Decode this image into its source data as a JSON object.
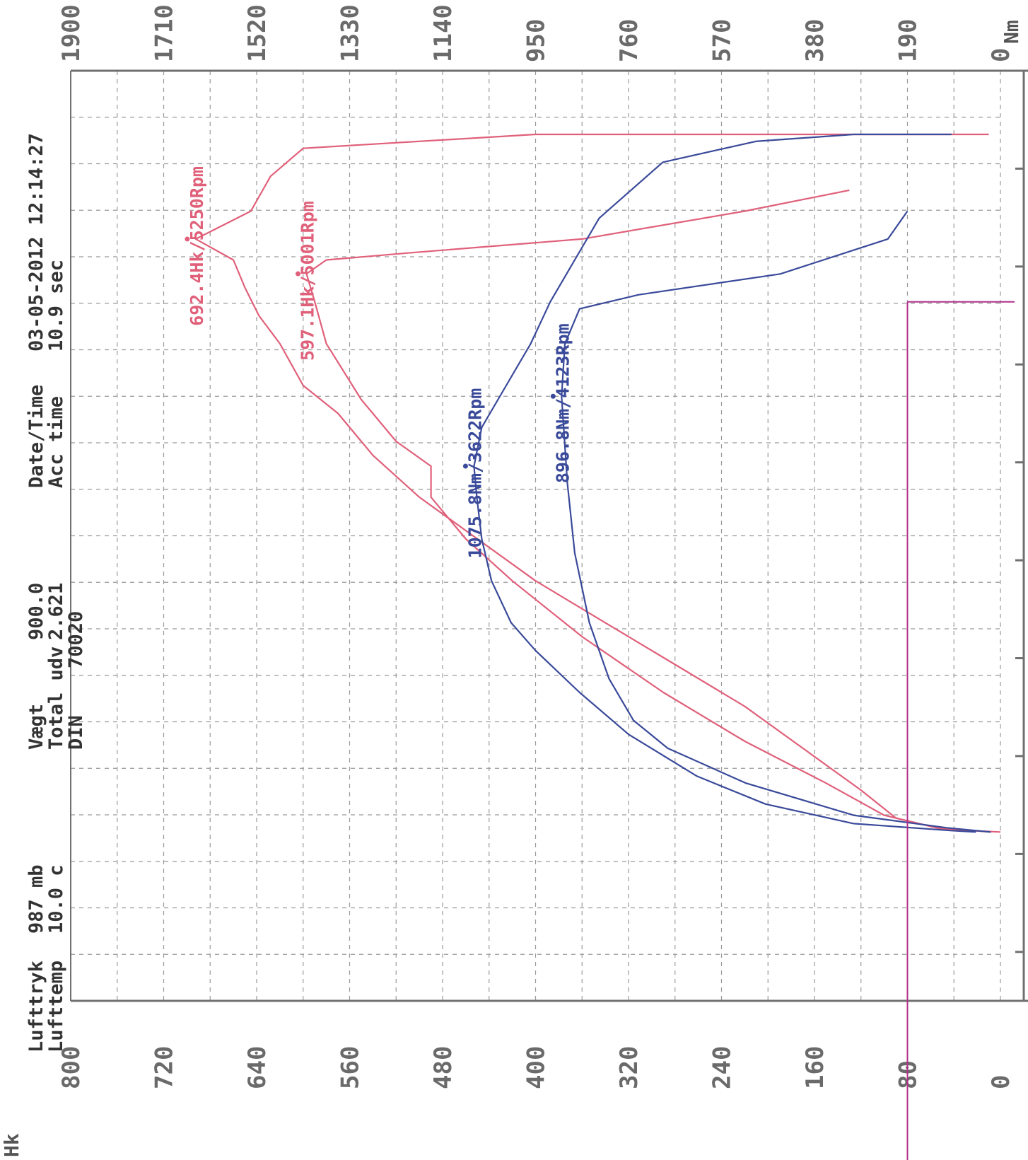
{
  "header": {
    "rows": [
      {
        "label": "Lufttryk",
        "value": "987 mb"
      },
      {
        "label": "Lufttemp",
        "value": "10.0 c"
      },
      {
        "label": "Vægt",
        "value": "900.0"
      },
      {
        "label": "Total udv",
        "value": "2.621"
      },
      {
        "label": "DIN",
        "value": "70020"
      },
      {
        "label": "Date/Time",
        "value": "03-05-2012 12:14:27"
      },
      {
        "label": "Acc time",
        "value": "10.9 sec"
      }
    ]
  },
  "colors": {
    "power": "#e0607a",
    "torque": "#3a4a9a",
    "marker": "#b0308a",
    "grid": "#9a9a9a",
    "frame": "#707070"
  },
  "chart_data": {
    "type": "line",
    "orientation": "rotated-90",
    "x_axis": {
      "unit": "",
      "range": [
        0,
        6000
      ]
    },
    "power_axis": {
      "unit": "Hk",
      "ticks": [
        "0",
        "80",
        "160",
        "240",
        "320",
        "400",
        "480",
        "560",
        "640",
        "720",
        "800"
      ],
      "range": [
        0,
        800
      ]
    },
    "torque_axis": {
      "unit": "Nm",
      "ticks": [
        "0",
        "190",
        "380",
        "570",
        "760",
        "950",
        "1140",
        "1330",
        "1520",
        "1710",
        "1900"
      ],
      "range": [
        0,
        1900
      ]
    },
    "marker_rpm": 4800,
    "series": [
      {
        "kind": "power",
        "unit": "Hk",
        "points": [
          [
            1000,
            0
          ],
          [
            1020,
            50
          ],
          [
            1100,
            90
          ],
          [
            1300,
            120
          ],
          [
            1600,
            170
          ],
          [
            1900,
            220
          ],
          [
            2200,
            280
          ],
          [
            2500,
            340
          ],
          [
            2800,
            400
          ],
          [
            3100,
            450
          ],
          [
            3400,
            500
          ],
          [
            3700,
            540
          ],
          [
            4000,
            570
          ],
          [
            4200,
            600
          ],
          [
            4500,
            620
          ],
          [
            4700,
            638
          ],
          [
            4900,
            650
          ],
          [
            5100,
            660
          ],
          [
            5250,
            692.4
          ],
          [
            5450,
            645
          ],
          [
            5700,
            628
          ],
          [
            5900,
            600
          ],
          [
            6000,
            400
          ],
          [
            6000,
            10
          ]
        ]
      },
      {
        "kind": "power",
        "unit": "Hk",
        "points": [
          [
            1000,
            8
          ],
          [
            1030,
            55
          ],
          [
            1120,
            100
          ],
          [
            1350,
            150
          ],
          [
            1650,
            220
          ],
          [
            2000,
            290
          ],
          [
            2400,
            360
          ],
          [
            2800,
            420
          ],
          [
            3100,
            460
          ],
          [
            3400,
            490
          ],
          [
            3622,
            490
          ],
          [
            3800,
            520
          ],
          [
            4100,
            550
          ],
          [
            4500,
            580
          ],
          [
            4800,
            590
          ],
          [
            5001,
            597.1
          ],
          [
            5100,
            580
          ],
          [
            5150,
            510
          ],
          [
            5250,
            360
          ],
          [
            5450,
            220
          ],
          [
            5600,
            130
          ]
        ]
      },
      {
        "kind": "torque",
        "unit": "Nm",
        "points": [
          [
            1000,
            50
          ],
          [
            1010,
            100
          ],
          [
            1060,
            300
          ],
          [
            1200,
            480
          ],
          [
            1400,
            620
          ],
          [
            1700,
            760
          ],
          [
            2000,
            860
          ],
          [
            2300,
            950
          ],
          [
            2500,
            1000
          ],
          [
            2800,
            1040
          ],
          [
            3100,
            1060
          ],
          [
            3400,
            1070
          ],
          [
            3622,
            1075.8
          ],
          [
            3900,
            1060
          ],
          [
            4200,
            1010
          ],
          [
            4500,
            960
          ],
          [
            4800,
            920
          ],
          [
            5100,
            870
          ],
          [
            5400,
            820
          ],
          [
            5800,
            690
          ],
          [
            5950,
            500
          ],
          [
            6000,
            300
          ],
          [
            6000,
            100
          ]
        ]
      },
      {
        "kind": "torque",
        "unit": "Nm",
        "points": [
          [
            1000,
            20
          ],
          [
            1030,
            110
          ],
          [
            1120,
            300
          ],
          [
            1350,
            520
          ],
          [
            1600,
            680
          ],
          [
            1800,
            750
          ],
          [
            2100,
            800
          ],
          [
            2500,
            840
          ],
          [
            3000,
            870
          ],
          [
            3500,
            885
          ],
          [
            4123,
            896.8
          ],
          [
            4500,
            890
          ],
          [
            4750,
            860
          ],
          [
            4850,
            740
          ],
          [
            5000,
            450
          ],
          [
            5250,
            230
          ],
          [
            5450,
            190
          ]
        ]
      }
    ],
    "annotations": [
      {
        "series": 0,
        "text": "692.4Hk/5250Rpm",
        "rpm": 5250,
        "value": 692.4
      },
      {
        "series": 1,
        "text": "597.1Hk/5001Rpm",
        "rpm": 5001,
        "value": 597.1
      },
      {
        "series": 2,
        "text": "1075.8Nm/3622Rpm",
        "rpm": 3622,
        "value": 1075.8
      },
      {
        "series": 3,
        "text": "896.8Nm/4123Rpm",
        "rpm": 4123,
        "value": 896.8
      }
    ]
  }
}
